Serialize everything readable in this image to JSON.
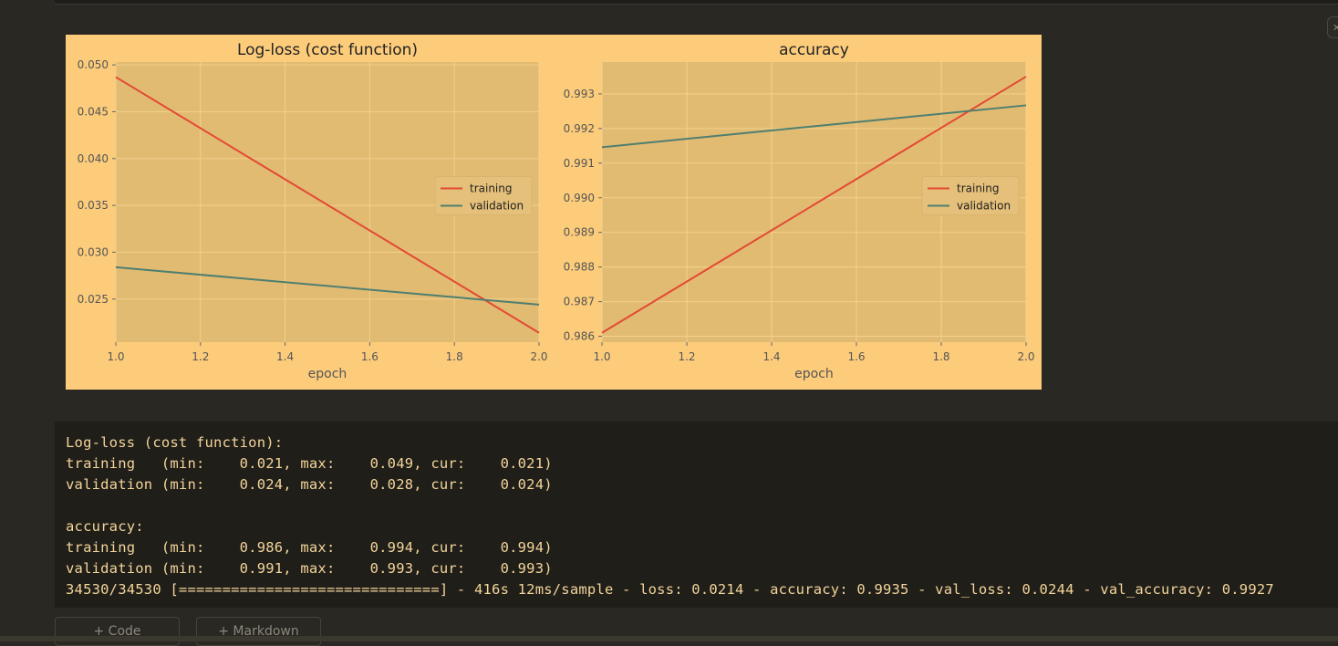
{
  "figure": {
    "chart_data": [
      {
        "type": "line",
        "title": "Log-loss (cost function)",
        "xlabel": "epoch",
        "ylabel": "",
        "xlim": [
          1.0,
          2.0
        ],
        "ylim": [
          0.0204,
          0.0503
        ],
        "xticks": [
          "1.0",
          "1.2",
          "1.4",
          "1.6",
          "1.8",
          "2.0"
        ],
        "xtick_values": [
          1.0,
          1.2,
          1.4,
          1.6,
          1.8,
          2.0
        ],
        "yticks": [
          "0.025",
          "0.030",
          "0.035",
          "0.040",
          "0.045",
          "0.050"
        ],
        "ytick_values": [
          0.025,
          0.03,
          0.035,
          0.04,
          0.045,
          0.05
        ],
        "grid": true,
        "legend_placement": "center-right",
        "series": [
          {
            "name": "training",
            "x": [
              1.0,
              2.0
            ],
            "values": [
              0.0487,
              0.0214
            ],
            "color": "#e24a33"
          },
          {
            "name": "validation",
            "x": [
              1.0,
              2.0
            ],
            "values": [
              0.0284,
              0.0244
            ],
            "color": "#4e7f6f"
          }
        ]
      },
      {
        "type": "line",
        "title": "accuracy",
        "xlabel": "epoch",
        "ylabel": "",
        "xlim": [
          1.0,
          2.0
        ],
        "ylim": [
          0.98583,
          0.99392
        ],
        "xticks": [
          "1.0",
          "1.2",
          "1.4",
          "1.6",
          "1.8",
          "2.0"
        ],
        "xtick_values": [
          1.0,
          1.2,
          1.4,
          1.6,
          1.8,
          2.0
        ],
        "yticks": [
          "0.986",
          "0.987",
          "0.988",
          "0.989",
          "0.990",
          "0.991",
          "0.992",
          "0.993"
        ],
        "ytick_values": [
          0.986,
          0.987,
          0.988,
          0.989,
          0.99,
          0.991,
          0.992,
          0.993
        ],
        "grid": true,
        "legend_placement": "center-right",
        "series": [
          {
            "name": "training",
            "x": [
              1.0,
              2.0
            ],
            "values": [
              0.9861,
              0.9935
            ],
            "color": "#e24a33"
          },
          {
            "name": "validation",
            "x": [
              1.0,
              2.0
            ],
            "values": [
              0.99146,
              0.99267
            ],
            "color": "#4e7f6f"
          }
        ]
      }
    ],
    "colors": {
      "figure_bg": "#fccc7b",
      "axes_bg": "#e2bb73",
      "grid": "#f2d08c",
      "text": "#222222",
      "tick_text": "#555555"
    }
  },
  "output": {
    "lines": [
      "Log-loss (cost function):",
      "training   (min:    0.021, max:    0.049, cur:    0.021)",
      "validation (min:    0.024, max:    0.028, cur:    0.024)",
      "",
      "accuracy:",
      "training   (min:    0.986, max:    0.994, cur:    0.994)",
      "validation (min:    0.991, max:    0.993, cur:    0.993)",
      "34530/34530 [==============================] - 416s 12ms/sample - loss: 0.0214 - accuracy: 0.9935 - val_loss: 0.0244 - val_accuracy: 0.9927"
    ]
  },
  "toolbar": {
    "add_code_label": "+ Code",
    "add_markdown_label": "+ Markdown"
  },
  "corner_icon": "close-icon"
}
